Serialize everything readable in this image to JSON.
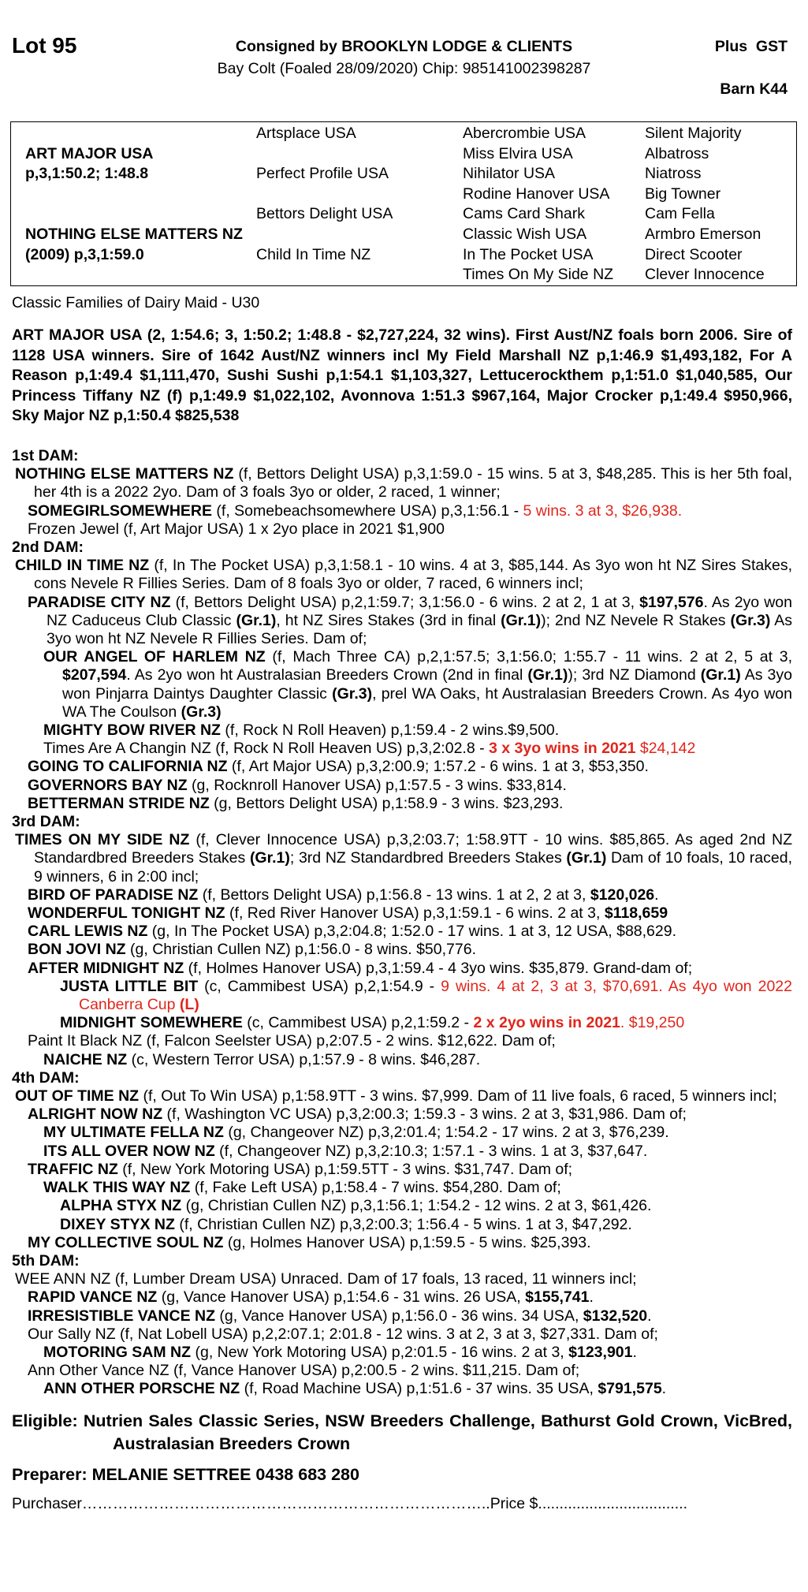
{
  "header": {
    "lot": "Lot 95",
    "consignor": "Consigned by BROOKLYN LODGE & CLIENTS",
    "tax": "Plus  GST",
    "description": "Bay Colt (Foaled 28/09/2020) Chip: 985141002398287",
    "barn": "Barn K44"
  },
  "pedigree": {
    "sire": {
      "name": "ART MAJOR USA",
      "record": "p,3,1:50.2; 1:48.8"
    },
    "dam": {
      "name": "NOTHING ELSE MATTERS NZ",
      "record": "(2009) p,3,1:59.0"
    },
    "grandparents": [
      "Artsplace USA",
      "Perfect Profile USA",
      "Bettors Delight USA",
      "Child In Time NZ"
    ],
    "great_grandparents": [
      "Abercrombie USA",
      "Miss Elvira USA",
      "Nihilator USA",
      "Rodine Hanover USA",
      "Cams Card Shark",
      "Classic Wish USA",
      "In The Pocket USA",
      "Times On My Side NZ"
    ],
    "great_great_grandparents": [
      "Silent Majority",
      "Albatross",
      "Niatross",
      "Big Towner",
      "Cam Fella",
      "Armbro Emerson",
      "Direct Scooter",
      "Clever Innocence"
    ]
  },
  "family": "Classic Families of Dairy Maid - U30",
  "sire_summary": "ART MAJOR USA (2, 1:54.6; 3, 1:50.2; 1:48.8 - $2,727,224, 32 wins). First Aust/NZ foals born 2006. Sire of 1128 USA winners. Sire of 1642 Aust/NZ winners incl My Field Marshall NZ p,1:46.9 $1,493,182, For A Reason p,1:49.4 $1,111,470, Sushi Sushi p,1:54.1 $1,103,327, Lettucerockthem p,1:51.0 $1,040,585, Our Princess Tiffany NZ (f) p,1:49.9 $1,022,102, Avonnova 1:51.3 $967,164, Major Crocker p,1:49.4 $950,966, Sky Major NZ p,1:50.4 $825,538",
  "dams": [
    {
      "heading": "1st DAM:",
      "lines": [
        {
          "runs": [
            {
              "text": "NOTHING ELSE MATTERS NZ",
              "bold": true
            },
            {
              "text": " (f, Bettors Delight USA) p,3,1:59.0 - 15 wins. 5 at 3, $48,285. This is her 5th foal, her 4th is a 2022 2yo. Dam of 3 foals 3yo or older, 2 raced, 1 winner;"
            }
          ]
        },
        {
          "runs": [
            {
              "text": "SOMEGIRLSOMEWHERE",
              "bold": true
            },
            {
              "text": " (f, Somebeachsomewhere USA) p,3,1:56.1 - "
            },
            {
              "text": "5 wins. 3 at 3, $26,938.",
              "red": true
            }
          ]
        },
        {
          "runs": [
            {
              "text": "Frozen Jewel (f, Art Major USA) 1 x 2yo place in 2021 $1,900"
            }
          ]
        }
      ]
    },
    {
      "heading": "2nd DAM:",
      "lines": [
        {
          "runs": [
            {
              "text": "CHILD IN TIME NZ",
              "bold": true
            },
            {
              "text": " (f, In The Pocket USA) p,3,1:58.1 - 10 wins. 4 at 3, $85,144. As 3yo won ht NZ Sires Stakes, cons Nevele R Fillies Series. Dam of 8 foals 3yo or older, 7 raced, 6 winners incl;"
            }
          ]
        },
        {
          "runs": [
            {
              "text": "PARADISE CITY NZ",
              "bold": true
            },
            {
              "text": " (f, Bettors Delight USA) p,2,1:59.7; 3,1:56.0 - 6 wins. 2 at 2, 1 at 3, "
            },
            {
              "text": "$197,576",
              "bold": true
            },
            {
              "text": ". As 2yo won NZ Caduceus Club Classic "
            },
            {
              "text": "(Gr.1)",
              "bold": true
            },
            {
              "text": ", ht NZ Sires Stakes (3rd in final "
            },
            {
              "text": "(Gr.1)",
              "bold": true
            },
            {
              "text": "); 2nd NZ Nevele R Stakes "
            },
            {
              "text": "(Gr.3)",
              "bold": true
            },
            {
              "text": " As 3yo won ht NZ Nevele R Fillies Series. Dam of;"
            }
          ]
        },
        {
          "runs": [
            {
              "text": "OUR ANGEL OF HARLEM NZ",
              "bold": true
            },
            {
              "text": " (f, Mach Three CA) p,2,1:57.5; 3,1:56.0; 1:55.7 - 11 wins. 2 at 2, 5 at 3, "
            },
            {
              "text": "$207,594",
              "bold": true
            },
            {
              "text": ". As 2yo won ht Australasian Breeders Crown (2nd in final "
            },
            {
              "text": "(Gr.1)",
              "bold": true
            },
            {
              "text": "); 3rd NZ Diamond "
            },
            {
              "text": "(Gr.1)",
              "bold": true
            },
            {
              "text": " As 3yo won Pinjarra Daintys Daughter Classic "
            },
            {
              "text": "(Gr.3)",
              "bold": true
            },
            {
              "text": ", prel WA Oaks, ht Australasian Breeders Crown. As 4yo won WA The Coulson "
            },
            {
              "text": "(Gr.3)",
              "bold": true
            }
          ]
        },
        {
          "runs": [
            {
              "text": "MIGHTY BOW RIVER NZ",
              "bold": true
            },
            {
              "text": " (f, Rock N Roll Heaven) p,1:59.4 - 2 wins.$9,500."
            }
          ]
        },
        {
          "runs": [
            {
              "text": "Times Are A Changin NZ (f, Rock N Roll Heaven US) p,3,2:02.8 - "
            },
            {
              "text": "3 x 3yo wins in 2021",
              "bold": true,
              "red": true
            },
            {
              "text": " $24,142",
              "red": true
            }
          ]
        },
        {
          "runs": [
            {
              "text": "GOING TO CALIFORNIA NZ",
              "bold": true
            },
            {
              "text": " (f, Art Major USA) p,3,2:00.9; 1:57.2 - 6 wins. 1 at 3, $53,350."
            }
          ]
        },
        {
          "runs": [
            {
              "text": "GOVERNORS BAY NZ",
              "bold": true
            },
            {
              "text": " (g, Rocknroll Hanover USA) p,1:57.5 - 3 wins. $33,814."
            }
          ]
        },
        {
          "runs": [
            {
              "text": "BETTERMAN STRIDE NZ",
              "bold": true
            },
            {
              "text": " (g, Bettors Delight USA) p,1:58.9 - 3 wins. $23,293."
            }
          ]
        }
      ]
    },
    {
      "heading": "3rd DAM:",
      "lines": [
        {
          "runs": [
            {
              "text": "TIMES ON MY SIDE NZ",
              "bold": true
            },
            {
              "text": " (f, Clever Innocence USA) p,3,2:03.7; 1:58.9TT - 10 wins. $85,865. As aged 2nd NZ Standardbred Breeders Stakes "
            },
            {
              "text": "(Gr.1)",
              "bold": true
            },
            {
              "text": "; 3rd NZ Standardbred Breeders Stakes "
            },
            {
              "text": "(Gr.1)",
              "bold": true
            },
            {
              "text": " Dam of 10 foals, 10 raced, 9 winners, 6 in 2:00 incl;"
            }
          ]
        },
        {
          "runs": [
            {
              "text": "BIRD OF PARADISE NZ",
              "bold": true
            },
            {
              "text": " (f, Bettors Delight USA) p,1:56.8 - 13 wins. 1 at 2, 2 at 3, "
            },
            {
              "text": "$120,026",
              "bold": true
            },
            {
              "text": "."
            }
          ]
        },
        {
          "runs": [
            {
              "text": "WONDERFUL TONIGHT NZ",
              "bold": true
            },
            {
              "text": " (f, Red River Hanover USA) p,3,1:59.1 - 6 wins. 2 at 3, "
            },
            {
              "text": "$118,659",
              "bold": true
            }
          ]
        },
        {
          "runs": [
            {
              "text": "CARL LEWIS NZ",
              "bold": true
            },
            {
              "text": " (g, In The Pocket USA) p,3,2:04.8; 1:52.0 - 17 wins. 1 at 3, 12 USA, $88,629."
            }
          ]
        },
        {
          "runs": [
            {
              "text": "BON JOVI NZ",
              "bold": true
            },
            {
              "text": " (g, Christian Cullen NZ) p,1:56.0 - 8 wins. $50,776."
            }
          ]
        },
        {
          "runs": [
            {
              "text": "AFTER MIDNIGHT NZ",
              "bold": true
            },
            {
              "text": " (f, Holmes Hanover USA) p,3,1:59.4 - 4 3yo wins. $35,879. Grand-dam of;"
            }
          ]
        },
        {
          "runs": [
            {
              "text": "JUSTA LITTLE BIT",
              "bold": true
            },
            {
              "text": " (c, Cammibest USA) p,2,1:54.9 - "
            },
            {
              "text": "9 wins. 4 at 2, 3 at 3, $70,691. As 4yo won 2022 Canberra Cup ",
              "red": true
            },
            {
              "text": "(L)",
              "bold": true,
              "red": true
            }
          ]
        },
        {
          "runs": [
            {
              "text": "MIDNIGHT SOMEWHERE",
              "bold": true
            },
            {
              "text": " (c, Cammibest USA) p,2,1:59.2 - "
            },
            {
              "text": "2 x 2yo wins in 2021",
              "bold": true,
              "red": true
            },
            {
              "text": ". $19,250",
              "red": true
            }
          ]
        },
        {
          "runs": [
            {
              "text": "Paint It Black NZ (f, Falcon Seelster USA) p,2:07.5 - 2 wins. $12,622. Dam of;"
            }
          ]
        },
        {
          "runs": [
            {
              "text": "NAICHE NZ",
              "bold": true
            },
            {
              "text": " (c, Western Terror USA) p,1:57.9 - 8 wins. $46,287."
            }
          ]
        }
      ]
    },
    {
      "heading": "4th DAM:",
      "lines": [
        {
          "runs": [
            {
              "text": "OUT OF TIME NZ",
              "bold": true
            },
            {
              "text": " (f, Out To Win USA) p,1:58.9TT - 3 wins. $7,999. Dam of 11 live foals, 6 raced, 5 winners incl;"
            }
          ]
        },
        {
          "runs": [
            {
              "text": "ALRIGHT NOW NZ",
              "bold": true
            },
            {
              "text": " (f, Washington VC USA) p,3,2:00.3; 1:59.3 - 3 wins. 2 at 3, $31,986. Dam of;"
            }
          ]
        },
        {
          "runs": [
            {
              "text": "MY ULTIMATE FELLA NZ",
              "bold": true
            },
            {
              "text": " (g, Changeover NZ) p,3,2:01.4; 1:54.2 - 17 wins. 2 at 3, $76,239."
            }
          ]
        },
        {
          "runs": [
            {
              "text": "ITS ALL OVER NOW NZ",
              "bold": true
            },
            {
              "text": " (f, Changeover NZ) p,3,2:10.3; 1:57.1 - 3 wins. 1 at 3, $37,647."
            }
          ]
        },
        {
          "runs": [
            {
              "text": "TRAFFIC NZ",
              "bold": true
            },
            {
              "text": " (f, New York Motoring USA) p,1:59.5TT - 3 wins. $31,747. Dam of;"
            }
          ]
        },
        {
          "runs": [
            {
              "text": "WALK THIS WAY NZ",
              "bold": true
            },
            {
              "text": " (f, Fake Left USA) p,1:58.4 - 7 wins. $54,280. Dam of;"
            }
          ]
        },
        {
          "runs": [
            {
              "text": "ALPHA STYX NZ",
              "bold": true
            },
            {
              "text": " (g, Christian Cullen NZ) p,3,1:56.1; 1:54.2 - 12 wins. 2 at 3, $61,426."
            }
          ]
        },
        {
          "runs": [
            {
              "text": "DIXEY STYX NZ",
              "bold": true
            },
            {
              "text": " (f, Christian Cullen NZ) p,3,2:00.3; 1:56.4 - 5 wins. 1 at 3, $47,292."
            }
          ]
        },
        {
          "runs": [
            {
              "text": "MY COLLECTIVE SOUL NZ",
              "bold": true
            },
            {
              "text": " (g, Holmes Hanover USA) p,1:59.5 - 5 wins. $25,393."
            }
          ]
        }
      ]
    },
    {
      "heading": "5th DAM:",
      "lines": [
        {
          "runs": [
            {
              "text": "WEE ANN NZ (f, Lumber Dream USA) Unraced. Dam of 17 foals, 13 raced, 11 winners incl;"
            }
          ]
        },
        {
          "runs": [
            {
              "text": "RAPID VANCE NZ",
              "bold": true
            },
            {
              "text": " (g, Vance Hanover USA) p,1:54.6 - 31 wins. 26 USA, "
            },
            {
              "text": "$155,741",
              "bold": true
            },
            {
              "text": "."
            }
          ]
        },
        {
          "runs": [
            {
              "text": "IRRESISTIBLE VANCE NZ",
              "bold": true
            },
            {
              "text": " (g, Vance Hanover USA) p,1:56.0 - 36 wins. 34 USA, "
            },
            {
              "text": "$132,520",
              "bold": true
            },
            {
              "text": "."
            }
          ]
        },
        {
          "runs": [
            {
              "text": "Our Sally NZ (f, Nat Lobell USA) p,2,2:07.1; 2:01.8 - 12 wins. 3 at 2, 3 at 3, $27,331. Dam of;"
            }
          ]
        },
        {
          "runs": [
            {
              "text": "MOTORING SAM NZ",
              "bold": true
            },
            {
              "text": " (g, New York Motoring USA) p,2:01.5 - 16 wins. 2 at 3, "
            },
            {
              "text": "$123,901",
              "bold": true
            },
            {
              "text": "."
            }
          ]
        },
        {
          "runs": [
            {
              "text": "Ann Other Vance NZ (f, Vance Hanover USA) p,2:00.5 - 2 wins. $11,215. Dam of;"
            }
          ]
        },
        {
          "runs": [
            {
              "text": "ANN OTHER PORSCHE NZ",
              "bold": true
            },
            {
              "text": " (f, Road Machine USA) p,1:51.6 - 37 wins. 35 USA, "
            },
            {
              "text": "$791,575",
              "bold": true
            },
            {
              "text": "."
            }
          ]
        }
      ]
    }
  ],
  "eligible": "Eligible: Nutrien Sales Classic Series, NSW Breeders Challenge, Bathurst Gold Crown, VicBred, Australasian Breeders Crown",
  "preparer": "Preparer: MELANIE SETTREE 0438 683 280",
  "purchaser": "Purchaser……………………………………………………………………..Price $..................................."
}
